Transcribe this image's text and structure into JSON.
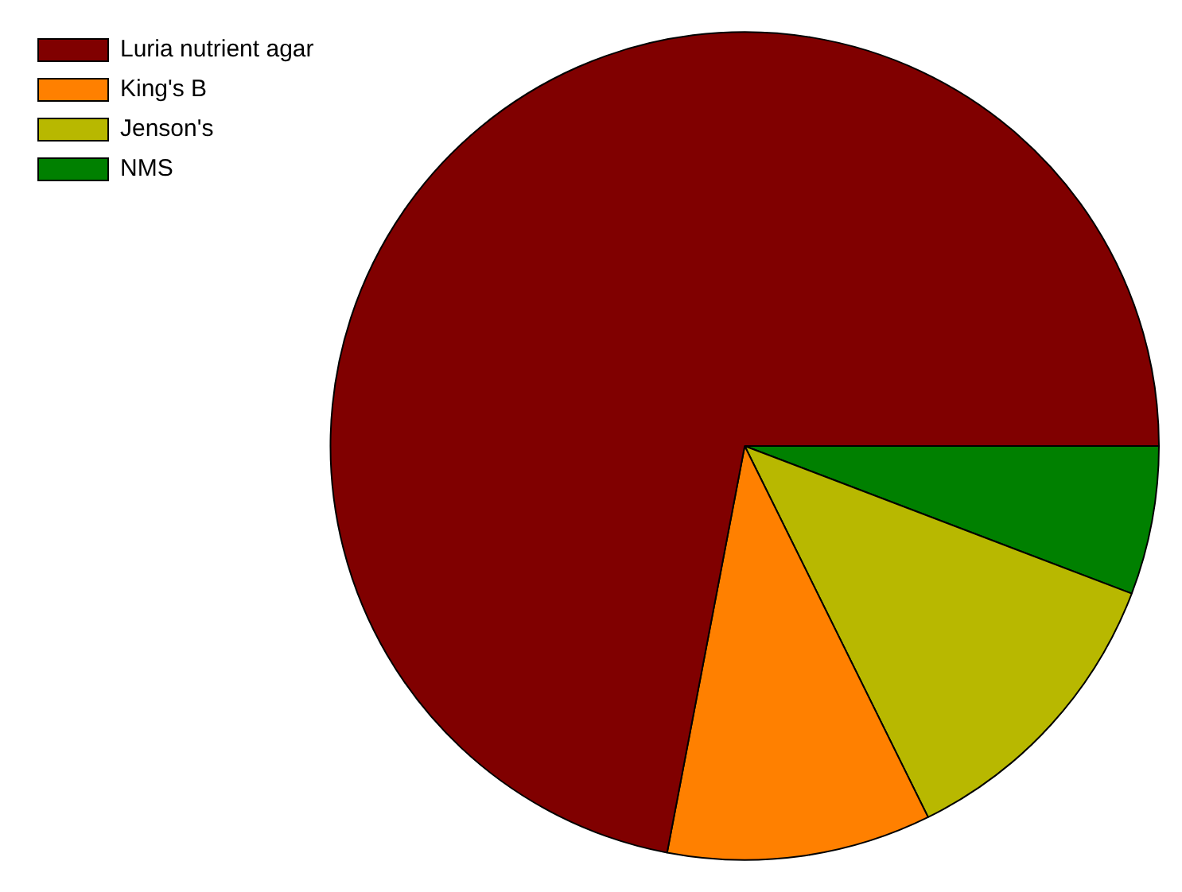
{
  "chart_data": {
    "type": "pie",
    "categories": [
      "Luria nutrient agar",
      "King's B",
      "Jenson's",
      "NMS"
    ],
    "values": [
      72,
      10.3,
      11.9,
      5.8
    ],
    "colors": [
      "#800000",
      "#ff8000",
      "#b8b800",
      "#008000"
    ],
    "legend": "top left"
  }
}
